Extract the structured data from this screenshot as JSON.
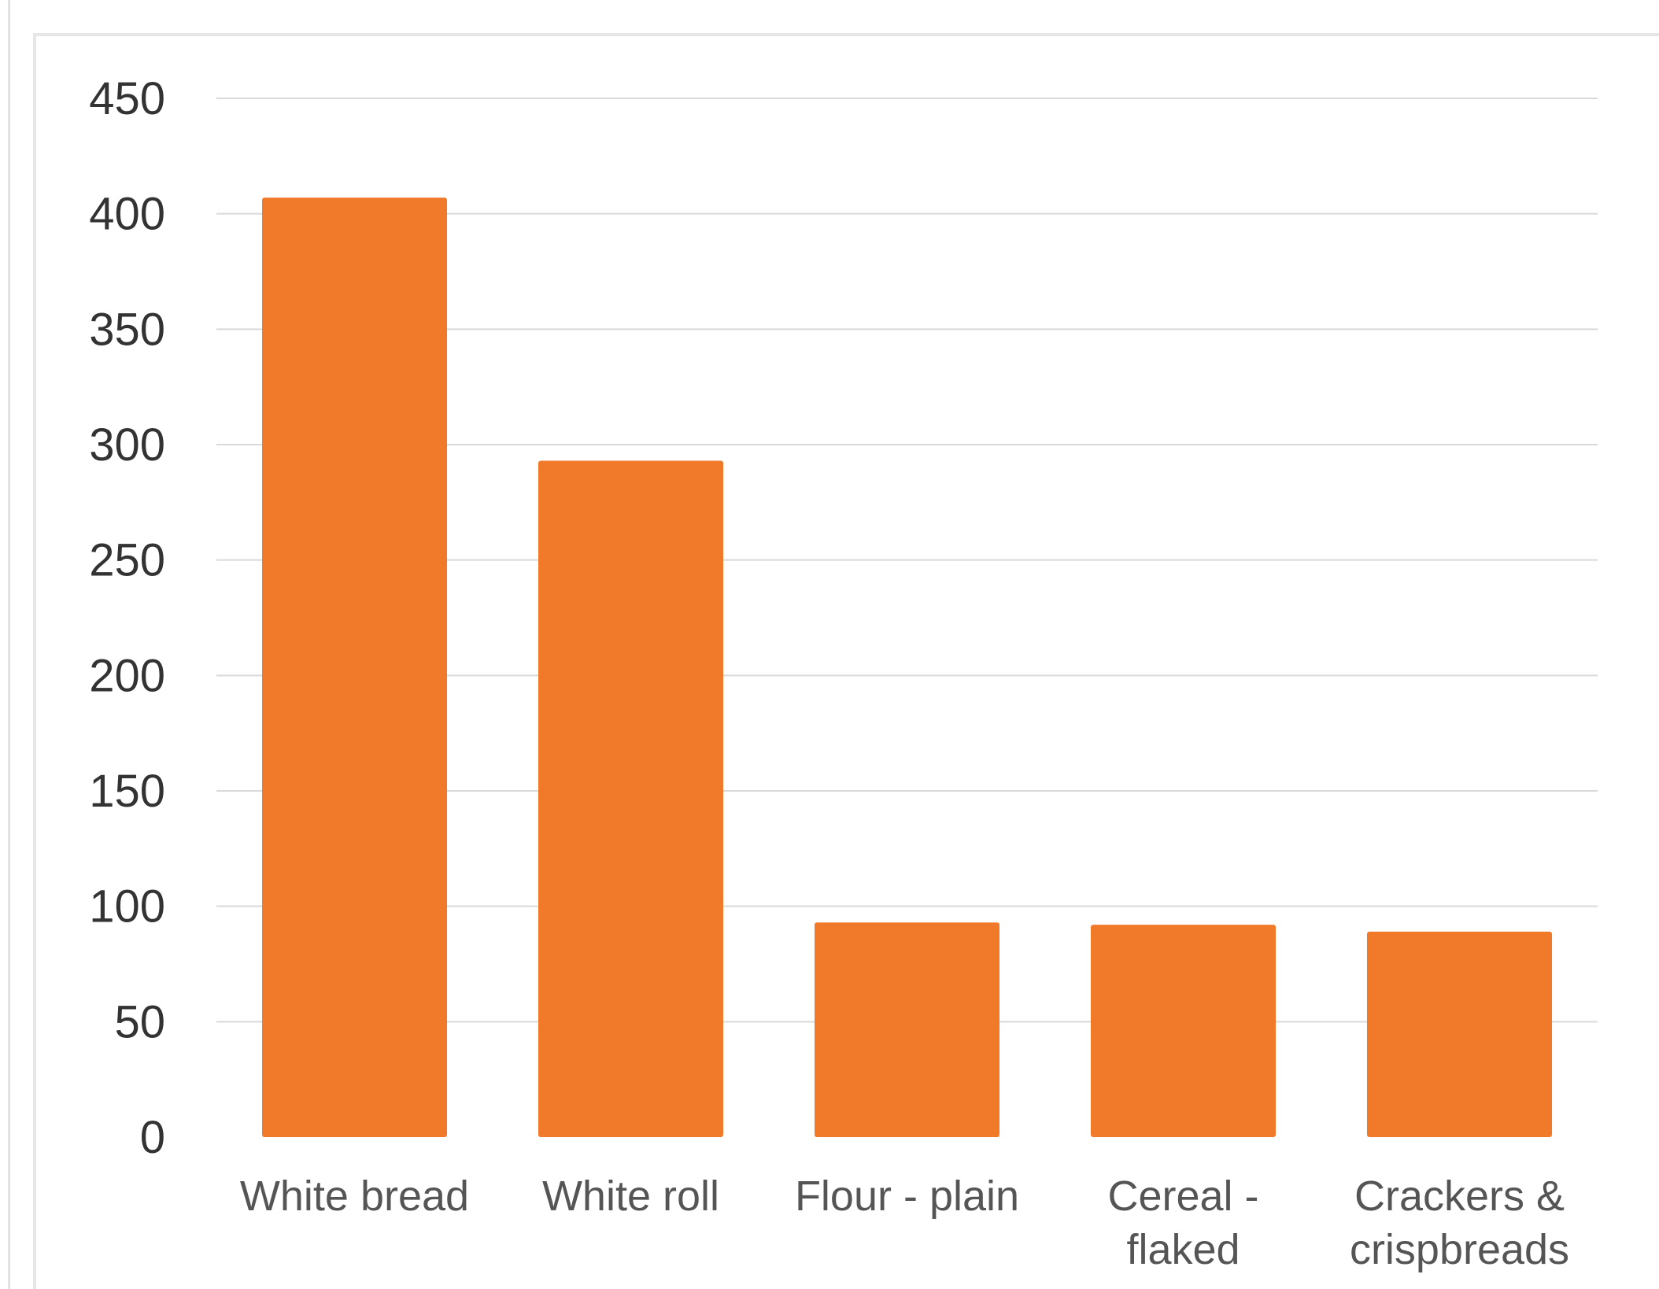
{
  "chart_data": {
    "type": "bar",
    "title": "",
    "xlabel": "",
    "ylabel": "",
    "categories": [
      [
        "White bread"
      ],
      [
        "White roll"
      ],
      [
        "Flour - plain"
      ],
      [
        "Cereal -",
        "flaked"
      ],
      [
        "Crackers &",
        "crispbreads"
      ]
    ],
    "values": [
      407,
      293,
      93,
      92,
      89
    ],
    "ylim": [
      0,
      450
    ],
    "yticks": [
      0,
      50,
      100,
      150,
      200,
      250,
      300,
      350,
      400,
      450
    ],
    "grid": true,
    "legend": "none",
    "colors": {
      "bar": "#f07a2a",
      "grid": "#d9d9d9",
      "tick_text": "#333333",
      "category_text": "#555555"
    }
  }
}
